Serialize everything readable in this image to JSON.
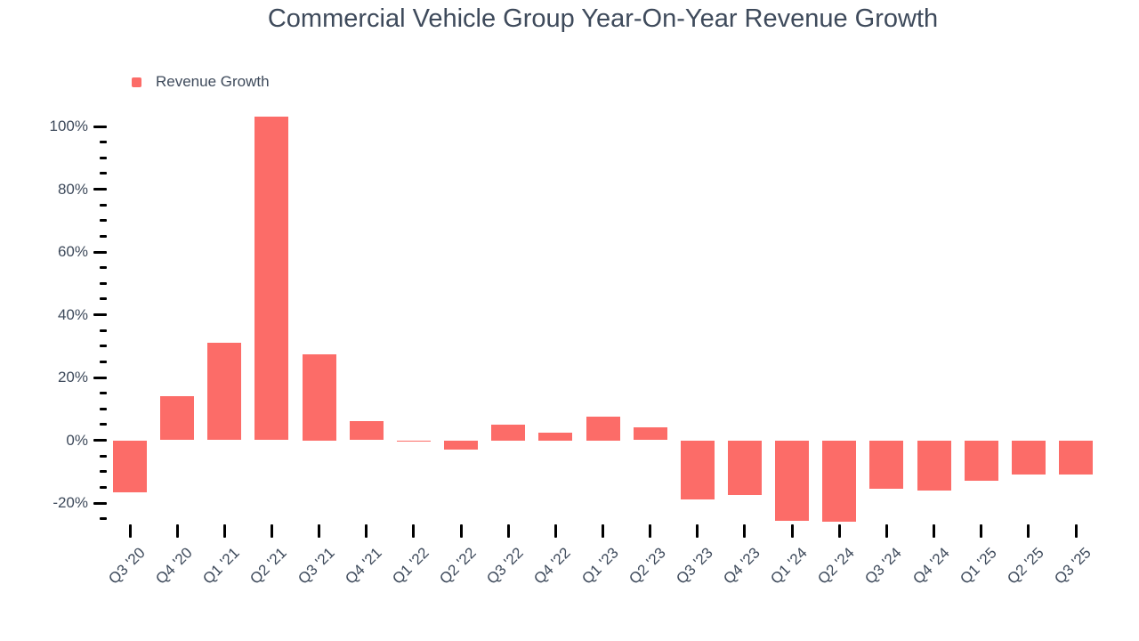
{
  "title": "Commercial Vehicle Group Year-On-Year Revenue Growth",
  "legend": {
    "label": "Revenue Growth"
  },
  "colors": {
    "bar": "#FC6C68",
    "text": "#3E4A5B",
    "tick": "#000000",
    "background": "#FFFFFF"
  },
  "y_axis": {
    "tick_labels": [
      "100%",
      "80%",
      "60%",
      "40%",
      "20%",
      "0%",
      "-20%"
    ],
    "major_step": 20,
    "minor_step": 5,
    "unit": "%"
  },
  "chart_data": {
    "type": "bar",
    "title": "Commercial Vehicle Group Year-On-Year Revenue Growth",
    "series_name": "Revenue Growth",
    "categories": [
      "Q3 '20",
      "Q4 '20",
      "Q1 '21",
      "Q2 '21",
      "Q3 '21",
      "Q4 '21",
      "Q1 '22",
      "Q2 '22",
      "Q3 '22",
      "Q4 '22",
      "Q1 '23",
      "Q2 '23",
      "Q3 '23",
      "Q4 '23",
      "Q1 '24",
      "Q2 '24",
      "Q3 '24",
      "Q4 '24",
      "Q1 '25",
      "Q2 '25",
      "Q3 '25"
    ],
    "values": [
      -16.5,
      14,
      31,
      103,
      27.5,
      6,
      -0.4,
      -3,
      5,
      2.5,
      7.5,
      4,
      -19,
      -17.5,
      -25.7,
      -26,
      -15.5,
      -16,
      -13,
      -11,
      -11
    ],
    "xlabel": "",
    "ylabel": "",
    "ylim": [
      -25,
      103
    ],
    "grid": false,
    "legend_position": "top-left",
    "bar_color": "#FC6C68"
  }
}
